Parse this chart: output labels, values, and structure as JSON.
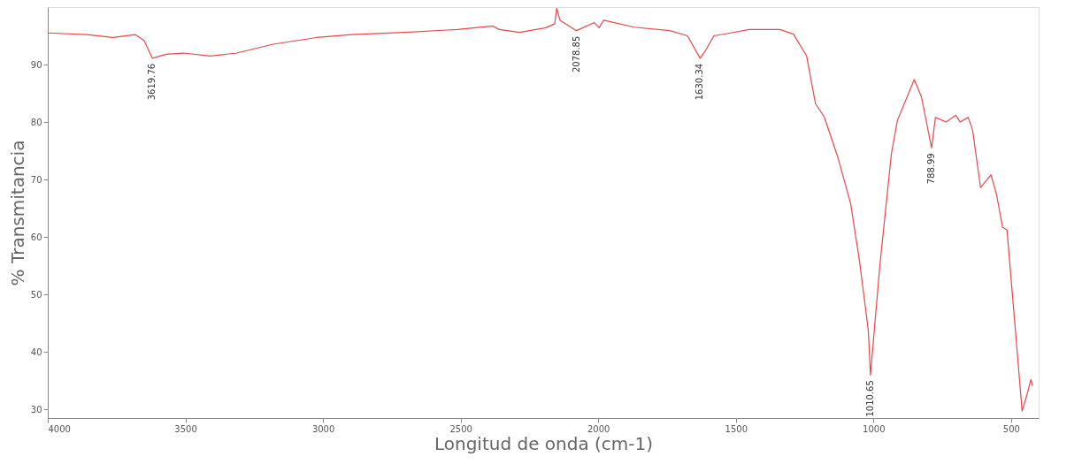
{
  "chart_data": {
    "type": "line",
    "xlabel": "Longitud de onda (cm-1)",
    "ylabel": "% Transmitancia",
    "xlim": [
      4000,
      400
    ],
    "ylim": [
      28.5,
      100
    ],
    "xticks": [
      4000,
      3500,
      3000,
      2500,
      2000,
      1500,
      1000,
      500
    ],
    "yticks": [
      30,
      40,
      50,
      60,
      70,
      80,
      90
    ],
    "grid": false,
    "marker": "none",
    "line_style": "solid",
    "series": [
      {
        "color": "#e8474c",
        "x": [
          4000,
          3859,
          3763,
          3682,
          3650,
          3620,
          3570,
          3506,
          3410,
          3313,
          3185,
          3024,
          2896,
          2703,
          2511,
          2383,
          2360,
          2286,
          2190,
          2158,
          2151,
          2139,
          2087,
          2079,
          2014,
          1997,
          1981,
          1869,
          1741,
          1676,
          1630,
          1612,
          1580,
          1518,
          1452,
          1340,
          1291,
          1243,
          1211,
          1179,
          1131,
          1083,
          1051,
          1019,
          1011,
          977,
          935,
          913,
          852,
          826,
          789,
          775,
          736,
          701,
          685,
          656,
          640,
          611,
          573,
          553,
          531,
          515,
          486,
          460,
          444,
          428,
          422
        ],
        "values": [
          95.5,
          95.2,
          94.7,
          95.2,
          94.2,
          91.1,
          91.8,
          92.0,
          91.5,
          92.0,
          93.5,
          94.7,
          95.2,
          95.6,
          96.1,
          96.7,
          96.1,
          95.6,
          96.4,
          97.1,
          99.8,
          97.7,
          96.1,
          95.9,
          97.3,
          96.4,
          97.7,
          96.5,
          95.9,
          95.0,
          91.1,
          92.3,
          95.0,
          95.5,
          96.1,
          96.1,
          95.3,
          91.5,
          83.2,
          80.9,
          74.1,
          65.8,
          55.9,
          43.8,
          36.0,
          55.0,
          74.5,
          80.3,
          87.4,
          84.4,
          75.5,
          80.8,
          80.0,
          81.2,
          80.0,
          80.8,
          78.6,
          68.6,
          70.8,
          67.4,
          61.7,
          61.2,
          44.7,
          29.7,
          32.3,
          35.2,
          34.1
        ]
      }
    ],
    "annotations": [
      {
        "text": "3619.76",
        "x": 3620,
        "y": 91.1
      },
      {
        "text": "2078.85",
        "x": 2079,
        "y": 95.9
      },
      {
        "text": "1630.34",
        "x": 1630,
        "y": 91.1
      },
      {
        "text": "1010.65",
        "x": 1011,
        "y": 36.0
      },
      {
        "text": "788.99",
        "x": 789,
        "y": 75.5
      }
    ]
  }
}
